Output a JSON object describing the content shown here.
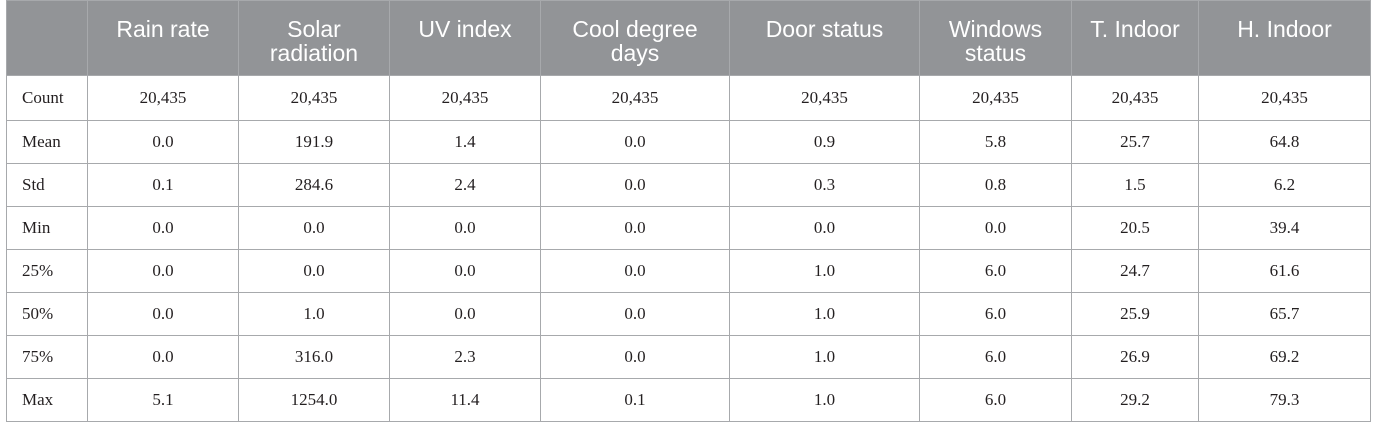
{
  "table": {
    "corner": "",
    "columns": [
      "Rain rate",
      "Solar radiation",
      "UV index",
      "Cool degree days",
      "Door status",
      "Windows status",
      "T. Indoor",
      "H. Indoor"
    ],
    "rows": [
      {
        "label": "Count",
        "values": [
          "20,435",
          "20,435",
          "20,435",
          "20,435",
          "20,435",
          "20,435",
          "20,435",
          "20,435"
        ]
      },
      {
        "label": "Mean",
        "values": [
          "0.0",
          "191.9",
          "1.4",
          "0.0",
          "0.9",
          "5.8",
          "25.7",
          "64.8"
        ]
      },
      {
        "label": "Std",
        "values": [
          "0.1",
          "284.6",
          "2.4",
          "0.0",
          "0.3",
          "0.8",
          "1.5",
          "6.2"
        ]
      },
      {
        "label": "Min",
        "values": [
          "0.0",
          "0.0",
          "0.0",
          "0.0",
          "0.0",
          "0.0",
          "20.5",
          "39.4"
        ]
      },
      {
        "label": "25%",
        "values": [
          "0.0",
          "0.0",
          "0.0",
          "0.0",
          "1.0",
          "6.0",
          "24.7",
          "61.6"
        ]
      },
      {
        "label": "50%",
        "values": [
          "0.0",
          "1.0",
          "0.0",
          "0.0",
          "1.0",
          "6.0",
          "25.9",
          "65.7"
        ]
      },
      {
        "label": "75%",
        "values": [
          "0.0",
          "316.0",
          "2.3",
          "0.0",
          "1.0",
          "6.0",
          "26.9",
          "69.2"
        ]
      },
      {
        "label": "Max",
        "values": [
          "5.1",
          "1254.0",
          "11.4",
          "0.1",
          "1.0",
          "6.0",
          "29.2",
          "79.3"
        ]
      }
    ]
  }
}
